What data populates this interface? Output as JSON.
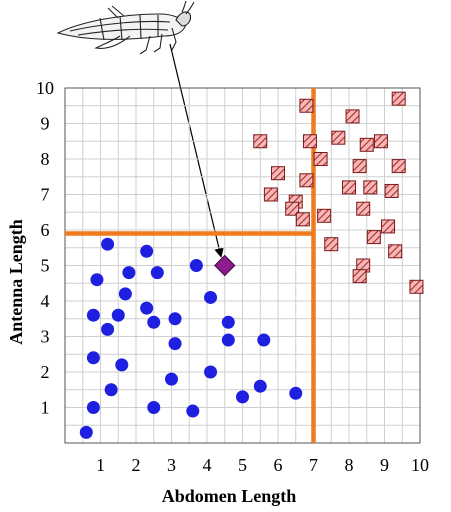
{
  "chart_data": {
    "type": "scatter",
    "title": "",
    "xlabel": "Abdomen Length",
    "ylabel": "Antenna Length",
    "xlim": [
      0,
      10
    ],
    "ylim": [
      0,
      10
    ],
    "xticks": [
      "1",
      "2",
      "3",
      "4",
      "5",
      "6",
      "7",
      "8",
      "9",
      "10"
    ],
    "yticks": [
      "1",
      "2",
      "3",
      "4",
      "5",
      "6",
      "7",
      "8",
      "9",
      "10"
    ],
    "grid": true,
    "colors": {
      "circles": "#1f1fe0",
      "squares_fill": "#f4b8b8",
      "squares_stripe": "#b02828",
      "query": "#8e1b8e",
      "boundary": "#f07a1e"
    },
    "series": [
      {
        "marker": "circle",
        "points": [
          [
            1.2,
            5.6
          ],
          [
            0.9,
            4.6
          ],
          [
            0.8,
            3.6
          ],
          [
            1.2,
            3.2
          ],
          [
            0.8,
            2.4
          ],
          [
            1.5,
            3.6
          ],
          [
            1.7,
            4.2
          ],
          [
            1.8,
            4.8
          ],
          [
            2.3,
            5.4
          ],
          [
            2.6,
            4.8
          ],
          [
            2.3,
            3.8
          ],
          [
            2.5,
            3.4
          ],
          [
            3.1,
            3.5
          ],
          [
            3.1,
            2.8
          ],
          [
            3.0,
            1.8
          ],
          [
            1.6,
            2.2
          ],
          [
            1.3,
            1.5
          ],
          [
            0.8,
            1.0
          ],
          [
            0.6,
            0.3
          ],
          [
            2.5,
            1.0
          ],
          [
            3.6,
            0.9
          ],
          [
            3.7,
            5.0
          ],
          [
            4.1,
            4.1
          ],
          [
            4.1,
            2.0
          ],
          [
            4.6,
            3.4
          ],
          [
            4.6,
            2.9
          ],
          [
            5.0,
            1.3
          ],
          [
            5.5,
            1.6
          ],
          [
            5.6,
            2.9
          ],
          [
            6.5,
            1.4
          ]
        ]
      },
      {
        "marker": "square",
        "points": [
          [
            5.5,
            8.5
          ],
          [
            6.0,
            7.6
          ],
          [
            5.8,
            7.0
          ],
          [
            6.5,
            6.8
          ],
          [
            6.4,
            6.6
          ],
          [
            6.7,
            6.3
          ],
          [
            6.8,
            7.4
          ],
          [
            6.9,
            8.5
          ],
          [
            6.8,
            9.5
          ],
          [
            7.2,
            8.0
          ],
          [
            7.3,
            6.4
          ],
          [
            7.5,
            5.6
          ],
          [
            7.7,
            8.6
          ],
          [
            8.1,
            9.2
          ],
          [
            8.0,
            7.2
          ],
          [
            8.3,
            7.8
          ],
          [
            8.5,
            8.4
          ],
          [
            8.6,
            7.2
          ],
          [
            8.4,
            6.6
          ],
          [
            8.7,
            5.8
          ],
          [
            8.4,
            5.0
          ],
          [
            8.3,
            4.7
          ],
          [
            8.9,
            8.5
          ],
          [
            9.2,
            7.1
          ],
          [
            9.4,
            7.8
          ],
          [
            9.1,
            6.1
          ],
          [
            9.3,
            5.4
          ],
          [
            9.4,
            9.7
          ],
          [
            9.9,
            4.4
          ]
        ]
      },
      {
        "marker": "diamond",
        "points": [
          [
            4.5,
            5.0
          ]
        ]
      }
    ],
    "decision_boundaries": {
      "vertical_x": 7.0,
      "horizontal_y": 5.9
    }
  },
  "annotation": {
    "illustration": "grasshopper",
    "arrow_target": [
      4.5,
      5.0
    ]
  }
}
